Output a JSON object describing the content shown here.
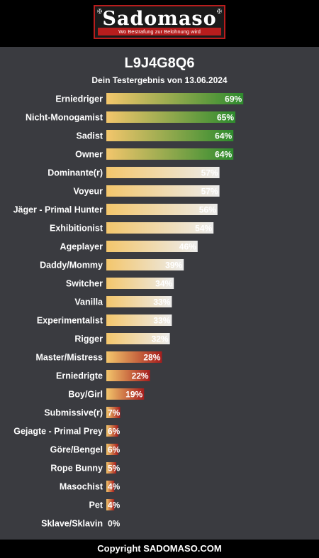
{
  "header": {
    "logo_text": "Sadomaso",
    "logo_tagline": "Wo Bestrafung zur Belohnung wird"
  },
  "title": "L9J4G8Q6",
  "subtitle": "Dein Testergebnis von 13.06.2024",
  "footer": "Copyright SADOMASO.COM",
  "colors": {
    "background": "#3a3b40",
    "bar_start": "#f3c66c",
    "green": "#2e8b2e",
    "light": "#ececec",
    "red": "#a61d1d"
  },
  "chart_data": {
    "type": "bar",
    "orientation": "horizontal",
    "xlim": [
      0,
      100
    ],
    "categories": [
      "Erniedriger",
      "Nicht-Monogamist",
      "Sadist",
      "Owner",
      "Dominante(r)",
      "Voyeur",
      "Jäger - Primal Hunter",
      "Exhibitionist",
      "Ageplayer",
      "Daddy/Mommy",
      "Switcher",
      "Vanilla",
      "Experimentalist",
      "Rigger",
      "Master/Mistress",
      "Erniedrigte",
      "Boy/Girl",
      "Submissive(r)",
      "Gejagte - Primal Prey",
      "Göre/Bengel",
      "Rope Bunny",
      "Masochist",
      "Pet",
      "Sklave/Sklavin"
    ],
    "values": [
      69,
      65,
      64,
      64,
      57,
      57,
      56,
      54,
      46,
      39,
      34,
      33,
      33,
      32,
      28,
      22,
      19,
      7,
      6,
      6,
      5,
      4,
      4,
      0
    ],
    "value_labels": [
      "69%",
      "65%",
      "64%",
      "64%",
      "57%",
      "57%",
      "56%",
      "54%",
      "46%",
      "39%",
      "34%",
      "33%",
      "33%",
      "32%",
      "28%",
      "22%",
      "19%",
      "7%",
      "6%",
      "6%",
      "5%",
      "4%",
      "4%",
      "0%"
    ],
    "bar_color_groups": [
      "green",
      "green",
      "green",
      "green",
      "light",
      "light",
      "light",
      "light",
      "light",
      "light",
      "light",
      "light",
      "light",
      "light",
      "red",
      "red",
      "red",
      "red",
      "red",
      "red",
      "red",
      "red",
      "red",
      "red"
    ]
  }
}
